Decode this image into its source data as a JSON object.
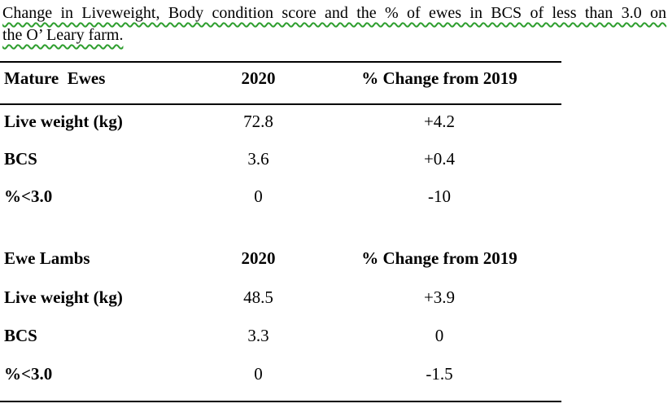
{
  "title": {
    "line1": "Change in Liveweight, Body condition score and the % of ewes in BCS of less than 3.0 on",
    "line2": "the O’ Leary farm."
  },
  "colors": {
    "grammar_squiggle_green": "#2e9e2e",
    "text": "#000000",
    "table_rule": "#000000"
  },
  "sections": [
    {
      "columns": {
        "col1": "Mature  Ewes",
        "col2": "2020",
        "col3": "% Change from 2019"
      },
      "rows": [
        {
          "label": "Live weight (kg)",
          "y2020": "72.8",
          "pct_change_from_2019": "+4.2"
        },
        {
          "label": "BCS",
          "y2020": "3.6",
          "pct_change_from_2019": "+0.4"
        },
        {
          "label": "%<3.0",
          "y2020": "0",
          "pct_change_from_2019": "-10"
        }
      ]
    },
    {
      "columns": {
        "col1": "Ewe Lambs",
        "col2": "2020",
        "col3": "% Change from 2019"
      },
      "rows": [
        {
          "label": "Live weight (kg)",
          "y2020": "48.5",
          "pct_change_from_2019": "+3.9"
        },
        {
          "label": "BCS",
          "y2020": "3.3",
          "pct_change_from_2019": "0"
        },
        {
          "label": "%<3.0",
          "y2020": "0",
          "pct_change_from_2019": "-1.5"
        }
      ]
    }
  ]
}
